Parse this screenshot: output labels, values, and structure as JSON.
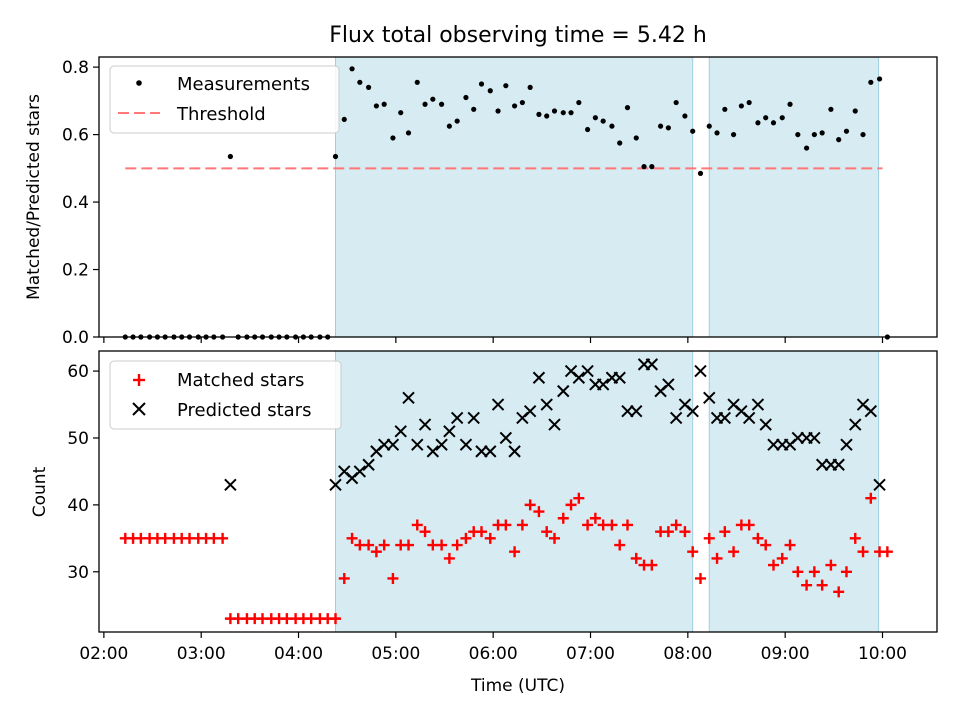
{
  "title": "Flux total observing time = 5.42 h",
  "chart_data": [
    {
      "type": "scatter",
      "panel": "top",
      "title": "Flux total observing time = 5.42 h",
      "xlabel": "",
      "ylabel": "Matched/Predicted stars",
      "xlim": [
        1.95,
        10.56
      ],
      "ylim": [
        0,
        0.83
      ],
      "yticks": [
        0.0,
        0.2,
        0.4,
        0.6,
        0.8
      ],
      "ytick_labels": [
        "0.0",
        "0.2",
        "0.4",
        "0.6",
        "0.8"
      ],
      "grid": false,
      "legend": "top-left",
      "shaded_spans": [
        [
          4.38,
          8.05
        ],
        [
          8.22,
          9.96
        ]
      ],
      "threshold": {
        "name": "Threshold",
        "value": 0.5,
        "x_range": [
          2.22,
          10.0
        ],
        "color": "#ff7777"
      },
      "series": [
        {
          "name": "Measurements",
          "marker": "dot",
          "color": "#000000",
          "x": [
            2.22,
            2.3,
            2.38,
            2.47,
            2.55,
            2.63,
            2.72,
            2.8,
            2.88,
            2.97,
            3.05,
            3.13,
            3.22,
            3.3,
            3.38,
            3.47,
            3.55,
            3.63,
            3.72,
            3.8,
            3.88,
            3.97,
            4.05,
            4.13,
            4.22,
            4.3,
            4.38,
            4.47,
            4.55,
            4.63,
            4.72,
            4.8,
            4.88,
            4.97,
            5.05,
            5.13,
            5.22,
            5.3,
            5.38,
            5.47,
            5.55,
            5.63,
            5.72,
            5.8,
            5.88,
            5.97,
            6.05,
            6.13,
            6.22,
            6.3,
            6.38,
            6.47,
            6.55,
            6.63,
            6.72,
            6.8,
            6.88,
            6.97,
            7.05,
            7.13,
            7.22,
            7.3,
            7.38,
            7.47,
            7.55,
            7.63,
            7.72,
            7.8,
            7.88,
            7.97,
            8.05,
            8.13,
            8.22,
            8.3,
            8.38,
            8.47,
            8.55,
            8.63,
            8.72,
            8.8,
            8.88,
            8.97,
            9.05,
            9.13,
            9.22,
            9.3,
            9.38,
            9.47,
            9.55,
            9.63,
            9.72,
            9.8,
            9.88,
            9.97,
            10.05
          ],
          "y": [
            0,
            0,
            0,
            0,
            0,
            0,
            0,
            0,
            0,
            0,
            0,
            0,
            0,
            0.535,
            0,
            0,
            0,
            0,
            0,
            0,
            0,
            0,
            0,
            0,
            0,
            0,
            0.535,
            0.645,
            0.795,
            0.755,
            0.74,
            0.685,
            0.69,
            0.59,
            0.665,
            0.605,
            0.755,
            0.69,
            0.705,
            0.69,
            0.625,
            0.64,
            0.71,
            0.675,
            0.75,
            0.73,
            0.67,
            0.745,
            0.685,
            0.695,
            0.74,
            0.66,
            0.655,
            0.67,
            0.665,
            0.665,
            0.695,
            0.615,
            0.65,
            0.64,
            0.625,
            0.575,
            0.68,
            0.59,
            0.505,
            0.505,
            0.625,
            0.62,
            0.695,
            0.655,
            0.61,
            0.485,
            0.625,
            0.605,
            0.675,
            0.6,
            0.685,
            0.695,
            0.635,
            0.65,
            0.635,
            0.65,
            0.69,
            0.6,
            0.56,
            0.6,
            0.605,
            0.675,
            0.585,
            0.61,
            0.67,
            0.6,
            0.755,
            0.765,
            0.0
          ]
        }
      ]
    },
    {
      "type": "scatter",
      "panel": "bottom",
      "xlabel": "Time (UTC)",
      "ylabel": "Count",
      "xlim": [
        1.95,
        10.56
      ],
      "ylim": [
        21,
        63
      ],
      "xticks": [
        2,
        3,
        4,
        5,
        6,
        7,
        8,
        9,
        10
      ],
      "xtick_labels": [
        "02:00",
        "03:00",
        "04:00",
        "05:00",
        "06:00",
        "07:00",
        "08:00",
        "09:00",
        "10:00"
      ],
      "yticks": [
        30,
        40,
        50,
        60
      ],
      "ytick_labels": [
        "30",
        "40",
        "50",
        "60"
      ],
      "grid": false,
      "legend": "top-left",
      "shaded_spans": [
        [
          4.38,
          8.05
        ],
        [
          8.22,
          9.96
        ]
      ],
      "series": [
        {
          "name": "Matched stars",
          "marker": "plus",
          "color": "#ff0000",
          "x": [
            2.22,
            2.3,
            2.38,
            2.47,
            2.55,
            2.63,
            2.72,
            2.8,
            2.88,
            2.97,
            3.05,
            3.13,
            3.22,
            3.3,
            3.38,
            3.47,
            3.55,
            3.63,
            3.72,
            3.8,
            3.88,
            3.97,
            4.05,
            4.13,
            4.22,
            4.3,
            4.38,
            4.47,
            4.55,
            4.63,
            4.72,
            4.8,
            4.88,
            4.97,
            5.05,
            5.13,
            5.22,
            5.3,
            5.38,
            5.47,
            5.55,
            5.63,
            5.72,
            5.8,
            5.88,
            5.97,
            6.05,
            6.13,
            6.22,
            6.3,
            6.38,
            6.47,
            6.55,
            6.63,
            6.72,
            6.8,
            6.88,
            6.97,
            7.05,
            7.13,
            7.22,
            7.3,
            7.38,
            7.47,
            7.55,
            7.63,
            7.72,
            7.8,
            7.88,
            7.97,
            8.05,
            8.13,
            8.22,
            8.3,
            8.38,
            8.47,
            8.55,
            8.63,
            8.72,
            8.8,
            8.88,
            8.97,
            9.05,
            9.13,
            9.22,
            9.3,
            9.38,
            9.47,
            9.55,
            9.63,
            9.72,
            9.8,
            9.88,
            9.97,
            10.05
          ],
          "y": [
            35,
            35,
            35,
            35,
            35,
            35,
            35,
            35,
            35,
            35,
            35,
            35,
            35,
            23,
            23,
            23,
            23,
            23,
            23,
            23,
            23,
            23,
            23,
            23,
            23,
            23,
            23,
            29,
            35,
            34,
            34,
            33,
            34,
            29,
            34,
            34,
            37,
            36,
            34,
            34,
            32,
            34,
            35,
            36,
            36,
            35,
            37,
            37,
            33,
            37,
            40,
            39,
            36,
            35,
            38,
            40,
            41,
            37,
            38,
            37,
            37,
            34,
            37,
            32,
            31,
            31,
            36,
            36,
            37,
            36,
            33,
            29,
            35,
            32,
            36,
            33,
            37,
            37,
            35,
            34,
            31,
            32,
            34,
            30,
            28,
            30,
            28,
            31,
            27,
            30,
            35,
            33,
            41,
            33,
            33
          ]
        },
        {
          "name": "Predicted stars",
          "marker": "x",
          "color": "#000000",
          "x": [
            3.3,
            4.38,
            4.47,
            4.55,
            4.63,
            4.72,
            4.8,
            4.88,
            4.97,
            5.05,
            5.13,
            5.22,
            5.3,
            5.38,
            5.47,
            5.55,
            5.63,
            5.72,
            5.8,
            5.88,
            5.97,
            6.05,
            6.13,
            6.22,
            6.3,
            6.38,
            6.47,
            6.55,
            6.63,
            6.72,
            6.8,
            6.88,
            6.97,
            7.05,
            7.13,
            7.22,
            7.3,
            7.38,
            7.47,
            7.55,
            7.63,
            7.72,
            7.8,
            7.88,
            7.97,
            8.05,
            8.13,
            8.22,
            8.3,
            8.38,
            8.47,
            8.55,
            8.63,
            8.72,
            8.8,
            8.88,
            8.97,
            9.05,
            9.13,
            9.22,
            9.3,
            9.38,
            9.47,
            9.55,
            9.63,
            9.72,
            9.8,
            9.88,
            9.97
          ],
          "y": [
            43,
            43,
            45,
            44,
            45,
            46,
            48,
            49,
            49,
            51,
            56,
            49,
            52,
            48,
            49,
            51,
            53,
            49,
            53,
            48,
            48,
            55,
            50,
            48,
            53,
            54,
            59,
            55,
            52,
            57,
            60,
            59,
            60,
            58,
            58,
            59,
            59,
            54,
            54,
            61,
            61,
            57,
            58,
            53,
            55,
            54,
            60,
            56,
            53,
            53,
            55,
            54,
            53,
            55,
            52,
            49,
            49,
            49,
            50,
            50,
            50,
            46,
            46,
            46,
            49,
            52,
            55,
            54,
            43
          ]
        }
      ]
    }
  ]
}
